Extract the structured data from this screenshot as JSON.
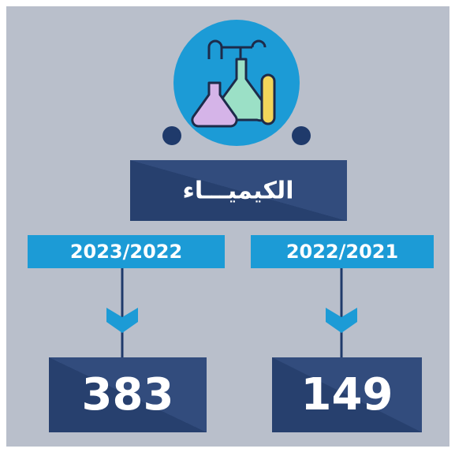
{
  "title": "الكيميـــاء",
  "columns": [
    {
      "year": "2023/2022",
      "value": 383
    },
    {
      "year": "2022/2021",
      "value": 149
    }
  ]
}
